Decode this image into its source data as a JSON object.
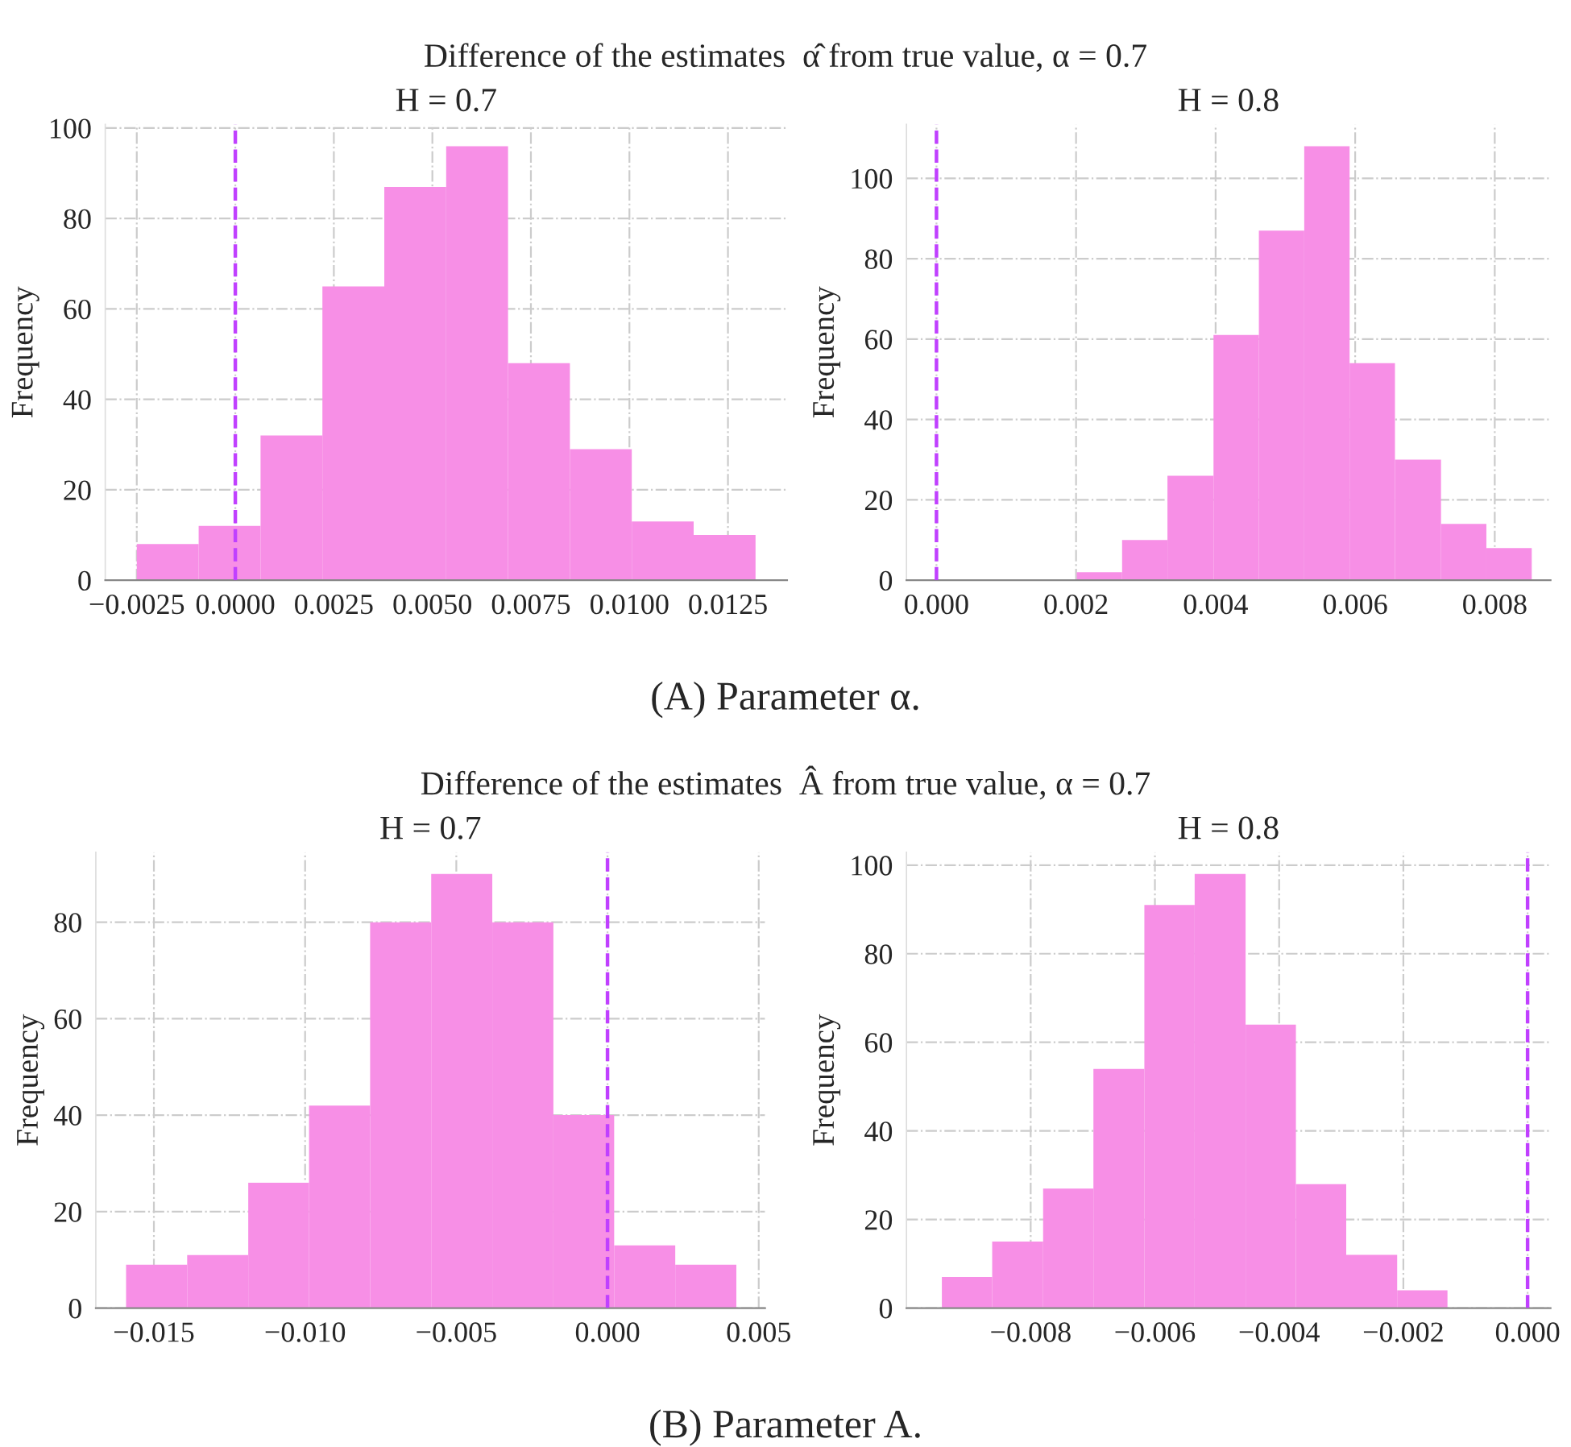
{
  "chart_data": [
    {
      "type": "histogram",
      "title": "H = 0.7",
      "ylabel": "Frequency",
      "annotations": [
        "Difference of the estimates  α̂ from true value, α = 0.7",
        "(A) Parameter α."
      ],
      "bins": [
        -0.0025,
        -0.00093,
        0.00064,
        0.00221,
        0.00378,
        0.00535,
        0.00692,
        0.00849,
        0.01006,
        0.01163,
        0.0132
      ],
      "values": [
        8,
        12,
        32,
        65,
        87,
        96,
        48,
        29,
        13,
        10
      ],
      "color": "#f78fe6",
      "ref_lines": [
        {
          "axis": "x",
          "value": 0,
          "color": "#c040ff",
          "line_style": "dashed"
        }
      ],
      "xlim": [
        -0.0033,
        0.014
      ],
      "ylim": [
        0,
        100.8
      ],
      "xticks": [
        {
          "value": -0.0025,
          "label": "−0.0025"
        },
        {
          "value": 0,
          "label": "0.0000"
        },
        {
          "value": 0.0025,
          "label": "0.0025"
        },
        {
          "value": 0.005,
          "label": "0.0050"
        },
        {
          "value": 0.0075,
          "label": "0.0075"
        },
        {
          "value": 0.01,
          "label": "0.0100"
        },
        {
          "value": 0.0125,
          "label": "0.0125"
        }
      ],
      "yticks": [
        0,
        20,
        40,
        60,
        80,
        100
      ],
      "grid": true
    },
    {
      "type": "histogram",
      "title": "H = 0.8",
      "ylabel": "Frequency",
      "bins": [
        0.00201,
        0.00266,
        0.00331,
        0.00397,
        0.00462,
        0.00527,
        0.00592,
        0.00657,
        0.00723,
        0.00788,
        0.00853
      ],
      "values": [
        2,
        10,
        26,
        61,
        87,
        108,
        54,
        30,
        14,
        8
      ],
      "color": "#f78fe6",
      "ref_lines": [
        {
          "axis": "x",
          "value": 0,
          "color": "#c040ff",
          "line_style": "dashed"
        }
      ],
      "xlim": [
        -0.00043,
        0.0088
      ],
      "ylim": [
        0,
        113.4
      ],
      "xticks": [
        {
          "value": 0,
          "label": "0.000"
        },
        {
          "value": 0.002,
          "label": "0.002"
        },
        {
          "value": 0.004,
          "label": "0.004"
        },
        {
          "value": 0.006,
          "label": "0.006"
        },
        {
          "value": 0.008,
          "label": "0.008"
        }
      ],
      "yticks": [
        0,
        20,
        40,
        60,
        80,
        100
      ],
      "grid": true
    },
    {
      "type": "histogram",
      "title": "H = 0.7",
      "ylabel": "Frequency",
      "annotations": [
        "Difference of the estimates  Â from true value, α = 0.7",
        "(B) Parameter A."
      ],
      "bins": [
        -0.01592,
        -0.0139,
        -0.01188,
        -0.00987,
        -0.00785,
        -0.00583,
        -0.00381,
        -0.00179,
        0.00022,
        0.00224,
        0.00426
      ],
      "values": [
        9,
        11,
        26,
        42,
        80,
        90,
        80,
        40,
        13,
        9
      ],
      "color": "#f78fe6",
      "ref_lines": [
        {
          "axis": "x",
          "value": 0,
          "color": "#c040ff",
          "line_style": "dashed"
        }
      ],
      "xlim": [
        -0.01692,
        0.00521
      ],
      "ylim": [
        0,
        94.5
      ],
      "xticks": [
        {
          "value": -0.015,
          "label": "−0.015"
        },
        {
          "value": -0.01,
          "label": "−0.010"
        },
        {
          "value": -0.005,
          "label": "−0.005"
        },
        {
          "value": 0,
          "label": "0.000"
        },
        {
          "value": 0.005,
          "label": "0.005"
        }
      ],
      "yticks": [
        0,
        20,
        40,
        60,
        80
      ],
      "grid": true
    },
    {
      "type": "histogram",
      "title": "H = 0.8",
      "ylabel": "Frequency",
      "bins": [
        -0.00943,
        -0.00862,
        -0.0078,
        -0.00699,
        -0.00617,
        -0.00536,
        -0.00454,
        -0.00373,
        -0.00292,
        -0.0021,
        -0.00129
      ],
      "values": [
        7,
        15,
        27,
        54,
        91,
        98,
        64,
        28,
        12,
        4
      ],
      "color": "#f78fe6",
      "ref_lines": [
        {
          "axis": "x",
          "value": 0,
          "color": "#c040ff",
          "line_style": "dashed"
        }
      ],
      "xlim": [
        -0.01,
        0.00037
      ],
      "ylim": [
        0,
        102.9
      ],
      "xticks": [
        {
          "value": -0.008,
          "label": "−0.008"
        },
        {
          "value": -0.006,
          "label": "−0.006"
        },
        {
          "value": -0.004,
          "label": "−0.004"
        },
        {
          "value": -0.002,
          "label": "−0.002"
        },
        {
          "value": 0,
          "label": "0.000"
        }
      ],
      "yticks": [
        0,
        20,
        40,
        60,
        80,
        100
      ],
      "grid": true
    }
  ]
}
